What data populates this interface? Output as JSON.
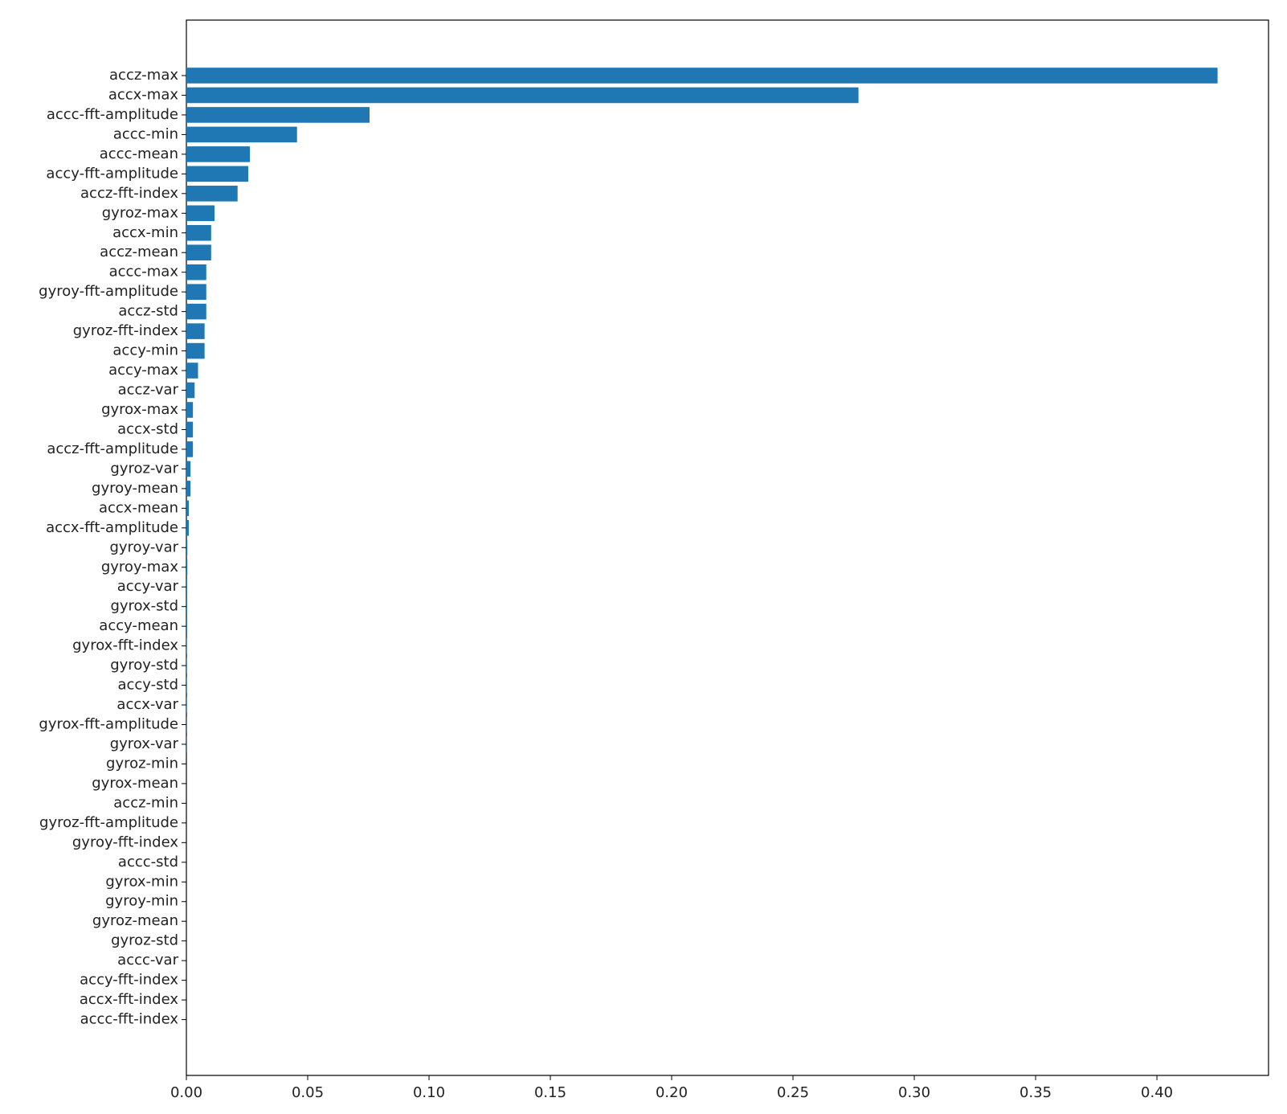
{
  "chart_data": {
    "type": "barh",
    "categories": [
      "accz-max",
      "accx-max",
      "accc-fft-amplitude",
      "accc-min",
      "accc-mean",
      "accy-fft-amplitude",
      "accz-fft-index",
      "gyroz-max",
      "accx-min",
      "accz-mean",
      "accc-max",
      "gyroy-fft-amplitude",
      "accz-std",
      "gyroz-fft-index",
      "accy-min",
      "accy-max",
      "accz-var",
      "gyrox-max",
      "accx-std",
      "accz-fft-amplitude",
      "gyroz-var",
      "gyroy-mean",
      "accx-mean",
      "accx-fft-amplitude",
      "gyroy-var",
      "gyroy-max",
      "accy-var",
      "gyrox-std",
      "accy-mean",
      "gyrox-fft-index",
      "gyroy-std",
      "accy-std",
      "accx-var",
      "gyrox-fft-amplitude",
      "gyrox-var",
      "gyroz-min",
      "gyrox-mean",
      "accz-min",
      "gyroz-fft-amplitude",
      "gyroy-fft-index",
      "accc-std",
      "gyrox-min",
      "gyroy-min",
      "gyroz-mean",
      "gyroz-std",
      "accc-var",
      "accy-fft-index",
      "accx-fft-index",
      "accc-fft-index"
    ],
    "values": [
      0.425,
      0.277,
      0.0755,
      0.0456,
      0.0262,
      0.0255,
      0.0211,
      0.0116,
      0.0102,
      0.0102,
      0.0082,
      0.0082,
      0.0082,
      0.0075,
      0.0075,
      0.0048,
      0.0034,
      0.0027,
      0.0027,
      0.0027,
      0.0017,
      0.0017,
      0.001,
      0.001,
      0.0004,
      0.0004,
      0.0003,
      0.0003,
      0.0003,
      0.0002,
      0.0002,
      0.0002,
      0.0002,
      0.0001,
      0.0001,
      0,
      0,
      0,
      0,
      0,
      0,
      0,
      0,
      0,
      0,
      0,
      0,
      0,
      0
    ],
    "color": "#1f77b4",
    "xlim": [
      0,
      0.446
    ],
    "xticks": [
      {
        "value": 0,
        "label": "0.00"
      },
      {
        "value": 0.05,
        "label": "0.05"
      },
      {
        "value": 0.1,
        "label": "0.10"
      },
      {
        "value": 0.15,
        "label": "0.15"
      },
      {
        "value": 0.2,
        "label": "0.20"
      },
      {
        "value": 0.25,
        "label": "0.25"
      },
      {
        "value": 0.3,
        "label": "0.30"
      },
      {
        "value": 0.35,
        "label": "0.35"
      },
      {
        "value": 0.4,
        "label": "0.40"
      }
    ],
    "grid": false
  }
}
